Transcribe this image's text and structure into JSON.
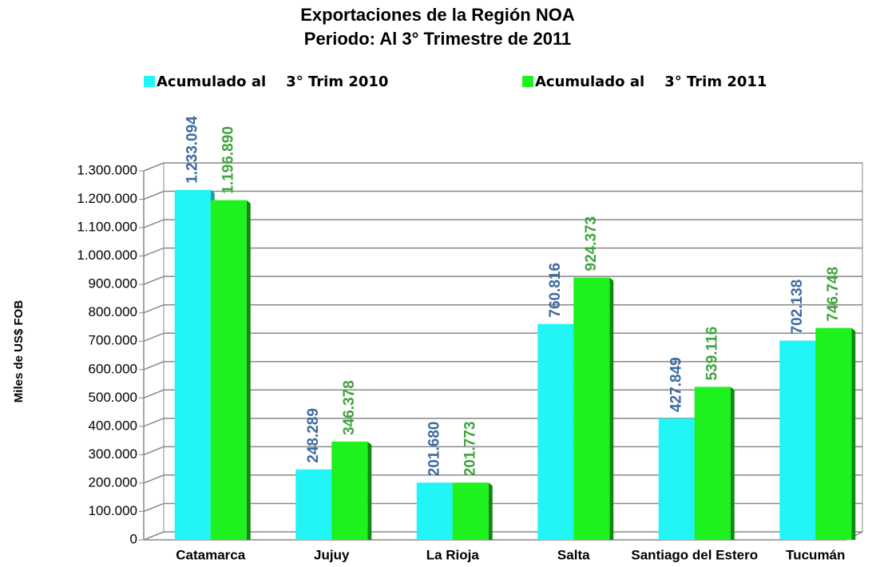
{
  "chart_data": {
    "type": "bar",
    "title": "Exportaciones de la Región NOA",
    "subtitle": "Periodo: Al 3° Trimestre de 2011",
    "y_axis_label": "Miles de US$ FOB",
    "categories": [
      "Catamarca",
      "Jujuy",
      "La Rioja",
      "Salta",
      "Santiago del Estero",
      "Tucumán"
    ],
    "series": [
      {
        "name": "Acumulado al    3° Trim 2010",
        "color": "#22f5f5",
        "label_color": "#3d6aa0",
        "values": [
          1233094,
          248289,
          201680,
          760816,
          427849,
          702138
        ],
        "value_labels": [
          "1.233.094",
          "248.289",
          "201.680",
          "760.816",
          "427.849",
          "702.138"
        ]
      },
      {
        "name": "Acumulado al    3° Trim 2011",
        "color": "#1ef21e",
        "label_color": "#3fa33f",
        "values": [
          1196890,
          346378,
          201773,
          924373,
          539116,
          746748
        ],
        "value_labels": [
          "1.196.890",
          "346.378",
          "201.773",
          "924.373",
          "539.116",
          "746.748"
        ]
      }
    ],
    "ylim": [
      0,
      1300000
    ],
    "yticks": [
      0,
      {
        "value": 100000,
        "label": "100.000"
      },
      {
        "value": 200000,
        "label": "200.000"
      },
      {
        "value": 300000,
        "label": "300.000"
      },
      {
        "value": 400000,
        "label": "400.000"
      },
      {
        "value": 500000,
        "label": "500.000"
      },
      {
        "value": 600000,
        "label": "600.000"
      },
      {
        "value": 700000,
        "label": "700.000"
      },
      {
        "value": 800000,
        "label": "800.000"
      },
      {
        "value": 900000,
        "label": "900.000"
      },
      {
        "value": 1000000,
        "label": "1.000.000"
      },
      {
        "value": 1100000,
        "label": "1.100.000"
      },
      {
        "value": 1200000,
        "label": "1.200.000"
      },
      {
        "value": 1300000,
        "label": "1.300.000"
      }
    ],
    "grid": true,
    "legend": "top"
  }
}
